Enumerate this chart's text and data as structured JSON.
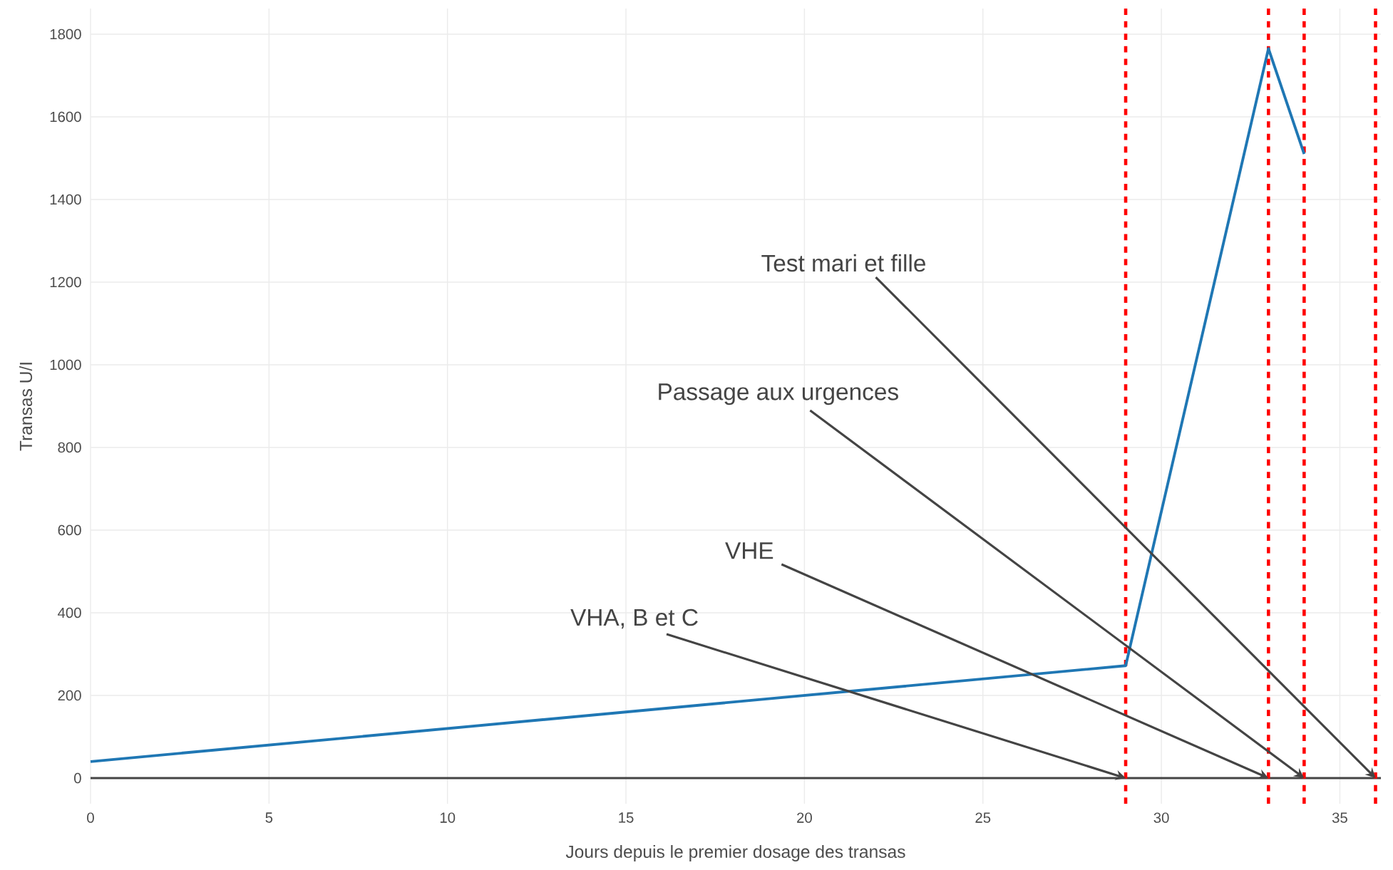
{
  "chart_data": {
    "type": "line",
    "xlabel": "Jours depuis le premier dosage des transas",
    "ylabel": "Transas U/I",
    "series": [
      {
        "color": "#1f77b4",
        "x": [
          0,
          29,
          33,
          34
        ],
        "values": [
          40,
          272,
          1765,
          1510
        ]
      }
    ],
    "xlim": [
      0,
      36.15
    ],
    "ylim": [
      -62,
      1862
    ],
    "xticks": [
      0,
      5,
      10,
      15,
      20,
      25,
      30,
      35
    ],
    "yticks": [
      0,
      200,
      400,
      600,
      800,
      1000,
      1200,
      1400,
      1600,
      1800
    ],
    "grid": true,
    "marker": "none",
    "line_style": "solid",
    "ref_lines": [
      {
        "axis": "x",
        "value": 29,
        "color": "#ff0000",
        "line_style": "dotted"
      },
      {
        "axis": "x",
        "value": 33,
        "color": "#ff0000",
        "line_style": "dotted"
      },
      {
        "axis": "x",
        "value": 34,
        "color": "#ff0000",
        "line_style": "dotted"
      },
      {
        "axis": "x",
        "value": 36,
        "color": "#ff0000",
        "line_style": "dotted"
      }
    ],
    "annotations": [
      {
        "text": "VHA, B et C",
        "x": 29,
        "y": 0
      },
      {
        "text": "VHE",
        "x": 33,
        "y": 0
      },
      {
        "text": "Passage aux urgences",
        "x": 34,
        "y": 0
      },
      {
        "text": "Test mari et fille",
        "x": 36,
        "y": 0
      }
    ]
  }
}
